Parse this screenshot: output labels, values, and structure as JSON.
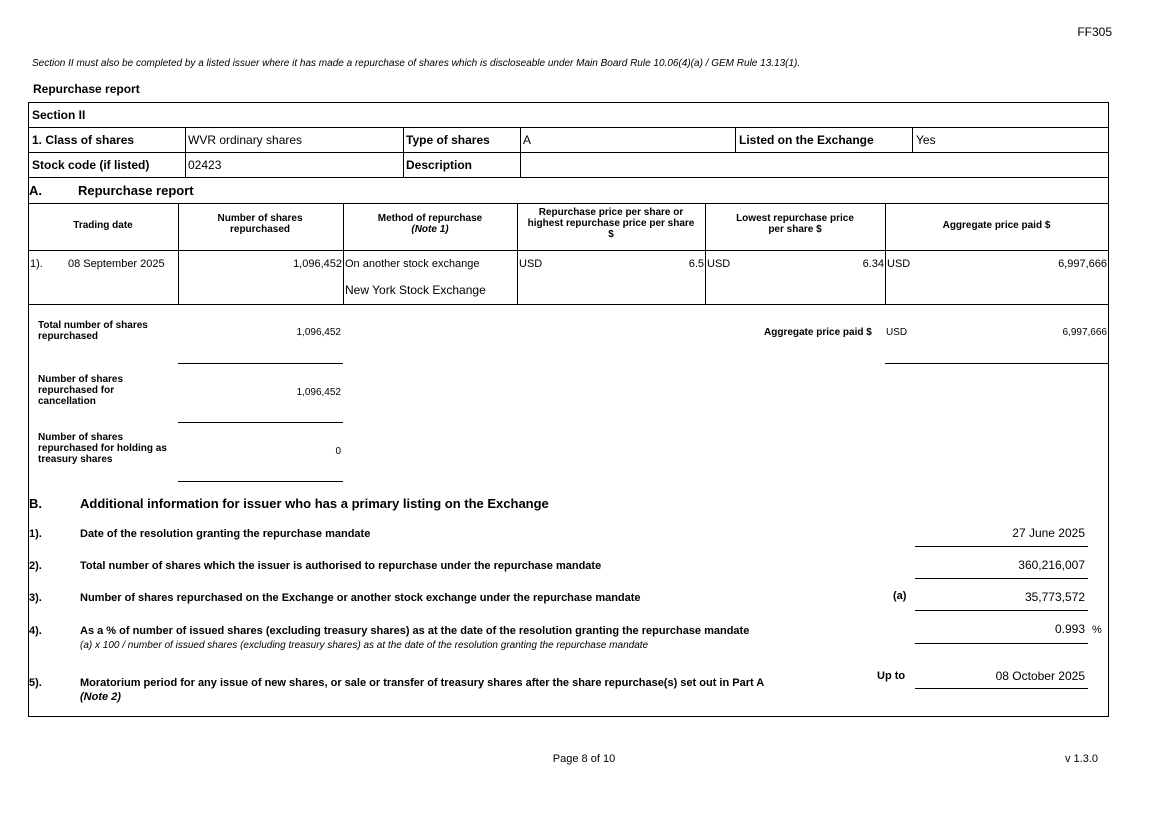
{
  "form_code": "FF305",
  "intro": "Section II must also be completed by a listed issuer where it has made a repurchase of shares which is discloseable under Main Board Rule 10.06(4)(a) / GEM Rule 13.13(1).",
  "report_title": "Repurchase report",
  "section": "Section II",
  "class_label": "1. Class of shares",
  "class_value": "WVR ordinary shares",
  "type_label": "Type of shares",
  "type_value": "A",
  "listed_label": "Listed on the Exchange",
  "listed_value": "Yes",
  "code_label": "Stock code (if listed)",
  "code_value": "02423",
  "desc_label": "Description",
  "desc_value": "",
  "partA": {
    "letter": "A.",
    "title": "Repurchase report"
  },
  "headers": {
    "date": "Trading date",
    "shares": "Number of shares repurchased",
    "method": "Method of repurchase",
    "method_note": "(Note 1)",
    "price": "Repurchase price per share or highest repurchase price per share $",
    "lowest": "Lowest repurchase price per share $",
    "aggregate": "Aggregate price paid $"
  },
  "rows": [
    {
      "num": "1).",
      "date": "08 September 2025",
      "shares": "1,096,452",
      "method": "On another stock exchange",
      "exchange": "New York Stock Exchange",
      "price_cur": "USD",
      "price": "6.5",
      "lowest_cur": "USD",
      "lowest": "6.34",
      "agg_cur": "USD",
      "agg": "6,997,666"
    }
  ],
  "totals": {
    "total_label": "Total number of shares repurchased",
    "total": "1,096,452",
    "cancel_label": "Number of shares repurchased for cancellation",
    "cancel": "1,096,452",
    "treasury_label": "Number of shares repurchased for holding as treasury shares",
    "treasury": "0",
    "agg_label": "Aggregate price paid $",
    "agg_cur": "USD",
    "agg": "6,997,666"
  },
  "partB": {
    "letter": "B.",
    "title": "Additional information for issuer who has a primary listing on the Exchange",
    "items": [
      {
        "num": "1).",
        "label": "Date of the resolution granting the repurchase mandate",
        "value": "27 June 2025"
      },
      {
        "num": "2).",
        "label": "Total number of shares which the issuer is authorised to repurchase under the repurchase mandate",
        "value": "360,216,007"
      },
      {
        "num": "3).",
        "label": "Number of shares repurchased on the Exchange or another stock exchange under the repurchase mandate",
        "tag": "(a)",
        "value": "35,773,572"
      },
      {
        "num": "4).",
        "label": "As a % of number of issued shares (excluding treasury shares) as at the date of the resolution granting the repurchase mandate",
        "sub": "(a) x 100 / number of issued shares (excluding treasury shares) as at the date of the resolution granting the repurchase mandate",
        "value": "0.993",
        "unit": "%"
      },
      {
        "num": "5).",
        "label": "Moratorium period for any issue of new shares, or sale or transfer of treasury shares after the share repurchase(s) set out in Part A",
        "note": "(Note 2)",
        "tag": "Up to",
        "value": "08 October 2025"
      }
    ]
  },
  "footer": {
    "page": "Page 8 of 10",
    "version": "v 1.3.0"
  }
}
